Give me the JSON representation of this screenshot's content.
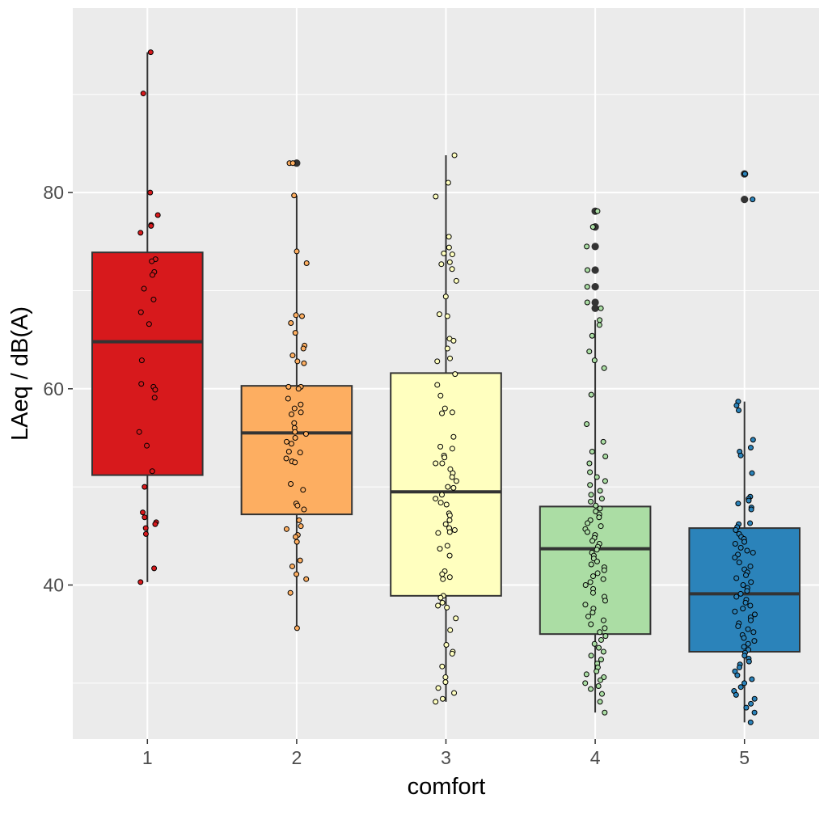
{
  "chart_data": {
    "type": "box",
    "title": "",
    "xlabel": "comfort",
    "ylabel": "LAeq / dB(A)",
    "categories": [
      "1",
      "2",
      "3",
      "4",
      "5"
    ],
    "ylim": [
      24.3,
      98.8
    ],
    "y_ticks": [
      40,
      60,
      80
    ],
    "y_minor_ticks": [
      30,
      50,
      70,
      90
    ],
    "grid": true,
    "legend": "none",
    "colors": {
      "panel_bg": "#ebebeb",
      "grid": "#ffffff",
      "box_stroke": "#333333",
      "fills": [
        "#d7191c",
        "#fdae61",
        "#ffffbf",
        "#abdda4",
        "#2b83ba"
      ]
    },
    "boxes": [
      {
        "category": "1",
        "whisker_low": 40.3,
        "q1": 51.2,
        "median": 64.8,
        "q3": 73.9,
        "whisker_high": 94.3,
        "outliers": []
      },
      {
        "category": "2",
        "whisker_low": 35.6,
        "q1": 47.2,
        "median": 55.5,
        "q3": 60.3,
        "whisker_high": 79.7,
        "outliers": [
          83.0
        ]
      },
      {
        "category": "3",
        "whisker_low": 28.1,
        "q1": 38.9,
        "median": 49.5,
        "q3": 61.6,
        "whisker_high": 83.8,
        "outliers": []
      },
      {
        "category": "4",
        "whisker_low": 27.0,
        "q1": 35.0,
        "median": 43.7,
        "q3": 48.0,
        "whisker_high": 67.0,
        "outliers": [
          68.2,
          68.8,
          70.4,
          72.1,
          74.5,
          76.5,
          78.1
        ]
      },
      {
        "category": "5",
        "whisker_low": 26.0,
        "q1": 33.2,
        "median": 39.1,
        "q3": 45.8,
        "whisker_high": 58.7,
        "outliers": [
          79.3,
          81.9
        ]
      }
    ],
    "points": [
      {
        "category": "1",
        "values": [
          94.3,
          90.1,
          80.0,
          77.7,
          76.7,
          76.6,
          75.9,
          73.2,
          73.0,
          71.9,
          71.6,
          70.2,
          69.1,
          67.8,
          66.6,
          62.9,
          60.5,
          60.2,
          59.9,
          59.1,
          55.6,
          54.2,
          51.6,
          50.0,
          47.4,
          46.9,
          46.4,
          46.2,
          45.8,
          45.2,
          41.7,
          40.3
        ]
      },
      {
        "category": "2",
        "values": [
          83.0,
          83.0,
          79.7,
          74.0,
          72.8,
          67.5,
          67.4,
          66.7,
          65.7,
          64.4,
          64.1,
          63.4,
          62.8,
          62.6,
          60.2,
          60.2,
          60.0,
          59.0,
          58.4,
          58.0,
          57.6,
          57.4,
          56.5,
          56.0,
          55.6,
          55.4,
          55.0,
          54.6,
          54.4,
          53.6,
          53.5,
          52.9,
          52.6,
          52.6,
          52.5,
          50.3,
          49.7,
          48.3,
          48.1,
          47.7,
          46.6,
          46.0,
          45.7,
          45.1,
          44.9,
          44.4,
          42.5,
          41.9,
          41.1,
          40.6,
          39.2,
          35.6
        ]
      },
      {
        "category": "3",
        "values": [
          83.8,
          81.0,
          79.6,
          75.5,
          74.4,
          73.8,
          73.7,
          72.9,
          72.7,
          72.2,
          71.0,
          69.4,
          67.6,
          67.4,
          65.1,
          64.9,
          64.1,
          63.1,
          62.8,
          61.5,
          60.4,
          59.3,
          58.0,
          57.6,
          57.5,
          55.1,
          54.1,
          53.9,
          53.2,
          53.0,
          52.4,
          52.4,
          51.8,
          51.4,
          51.0,
          50.6,
          50.0,
          49.9,
          49.2,
          48.8,
          48.4,
          48.2,
          47.3,
          47.1,
          46.6,
          46.2,
          45.8,
          45.6,
          45.4,
          45.3,
          44.0,
          43.7,
          43.0,
          41.4,
          41.1,
          40.8,
          40.6,
          38.9,
          38.7,
          38.2,
          37.9,
          37.7,
          36.6,
          35.4,
          33.9,
          33.2,
          33.0,
          31.7,
          30.6,
          30.1,
          29.5,
          29.0,
          28.4,
          28.1
        ]
      },
      {
        "category": "4",
        "values": [
          78.1,
          76.5,
          74.5,
          72.1,
          70.4,
          68.8,
          68.2,
          67.0,
          66.5,
          65.4,
          63.8,
          62.9,
          62.1,
          59.4,
          56.4,
          54.6,
          53.6,
          53.1,
          52.4,
          51.5,
          51.0,
          50.6,
          50.2,
          49.6,
          49.2,
          48.8,
          48.5,
          48.1,
          47.8,
          47.5,
          47.2,
          46.9,
          46.6,
          46.3,
          46.0,
          45.7,
          45.4,
          45.1,
          44.8,
          44.5,
          44.2,
          43.9,
          43.6,
          43.3,
          43.0,
          42.7,
          42.4,
          42.1,
          41.8,
          41.5,
          41.2,
          40.9,
          40.6,
          40.3,
          40.0,
          39.6,
          39.2,
          38.8,
          38.4,
          38.0,
          37.6,
          37.2,
          36.8,
          36.4,
          36.0,
          35.6,
          35.2,
          34.8,
          34.4,
          34.0,
          33.6,
          33.2,
          32.8,
          32.4,
          32.0,
          31.6,
          31.2,
          30.9,
          30.6,
          30.3,
          30.0,
          29.7,
          29.4,
          28.9,
          28.1,
          27.0
        ]
      },
      {
        "category": "5",
        "values": [
          81.9,
          79.3,
          58.7,
          58.3,
          57.8,
          54.8,
          54.0,
          53.6,
          53.2,
          51.4,
          49.0,
          48.8,
          48.6,
          48.3,
          47.9,
          47.7,
          46.3,
          46.2,
          45.9,
          45.6,
          45.2,
          44.9,
          44.7,
          44.4,
          44.2,
          43.8,
          43.5,
          43.3,
          43.1,
          42.8,
          42.3,
          41.9,
          41.6,
          41.3,
          41.0,
          40.7,
          40.3,
          40.0,
          39.7,
          39.4,
          39.1,
          38.8,
          38.5,
          38.2,
          37.9,
          37.6,
          37.3,
          37.0,
          36.7,
          36.4,
          36.1,
          35.8,
          35.5,
          35.2,
          34.9,
          34.6,
          34.3,
          34.0,
          33.7,
          33.4,
          33.1,
          32.8,
          32.5,
          32.2,
          31.9,
          31.6,
          31.2,
          30.8,
          30.4,
          30.0,
          29.6,
          29.2,
          28.8,
          28.4,
          27.9,
          27.5,
          27.0,
          26.0
        ]
      }
    ]
  }
}
